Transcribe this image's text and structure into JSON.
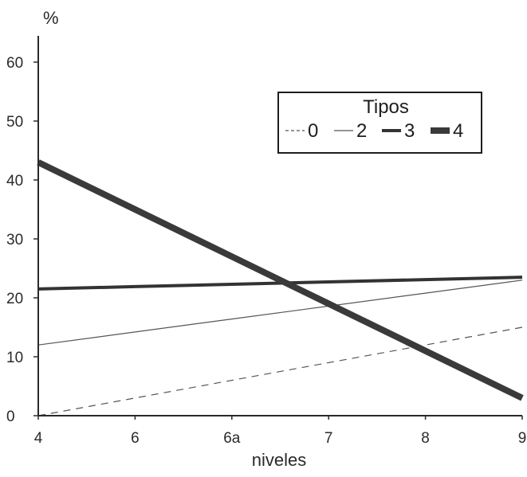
{
  "chart_data": {
    "type": "line",
    "title": "",
    "xlabel": "niveles",
    "ylabel": "%",
    "categories": [
      "4",
      "6",
      "6a",
      "7",
      "8",
      "9"
    ],
    "ylim": [
      0,
      60
    ],
    "yticks": [
      "0",
      "10",
      "20",
      "30",
      "40",
      "50",
      "60"
    ],
    "grid": false,
    "legend": {
      "title": "Tipos",
      "position": "top-right"
    },
    "series": [
      {
        "name": "0",
        "values": [
          0,
          3,
          6,
          9,
          12,
          15
        ],
        "style": "dashed",
        "color": "#555555"
      },
      {
        "name": "2",
        "values": [
          12,
          14.2,
          16.4,
          18.6,
          20.8,
          23
        ],
        "style": "thin",
        "color": "#555555"
      },
      {
        "name": "3",
        "values": [
          21.5,
          21.9,
          22.3,
          22.7,
          23.1,
          23.5
        ],
        "style": "medium",
        "color": "#333333"
      },
      {
        "name": "4",
        "values": [
          43,
          35,
          27,
          19,
          11,
          3
        ],
        "style": "thick",
        "color": "#3a3a3a"
      }
    ]
  }
}
